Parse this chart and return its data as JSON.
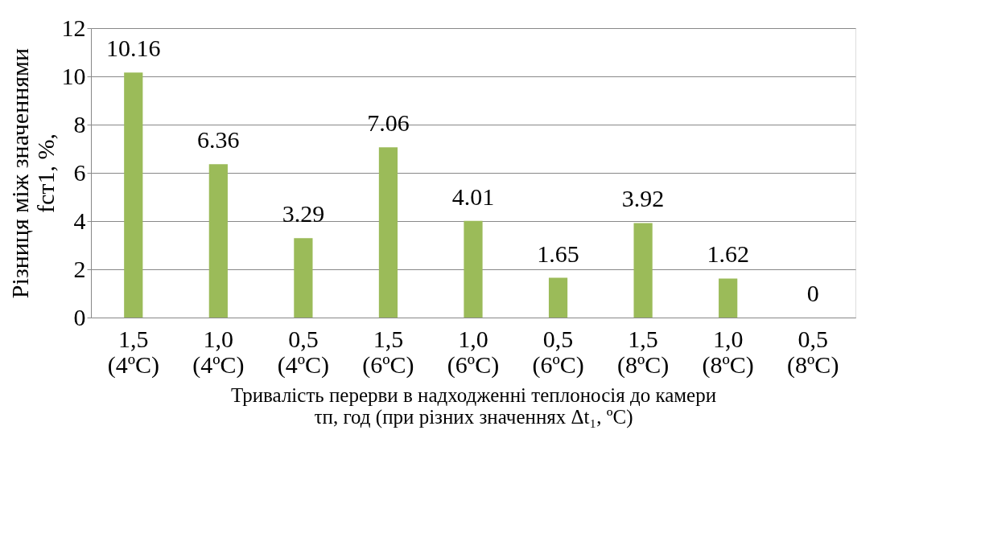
{
  "chart_data": {
    "type": "bar",
    "categories": [
      "1,5\n(4ºC)",
      "1,0\n(4ºC)",
      "0,5\n(4ºC)",
      "1,5\n(6ºC)",
      "1,0\n(6ºC)",
      "0,5\n(6ºC)",
      "1,5\n(8ºC)",
      "1,0\n(8ºC)",
      "0,5\n(8ºC)"
    ],
    "values": [
      10.16,
      6.36,
      3.29,
      7.06,
      4.01,
      1.65,
      3.92,
      1.62,
      0
    ],
    "color": "#9bbb59",
    "ylim": [
      0,
      12
    ],
    "yticks": [
      0,
      2,
      4,
      6,
      8,
      10,
      12
    ],
    "grid": "y",
    "data_labels": true,
    "xlabel": "Тривалість перерви в надходженні теплоносія до камери\nτп, год (при різних значеннях Δt₁, ºC)",
    "ylabel": "Різниця між значеннями\nfст1, %,"
  }
}
